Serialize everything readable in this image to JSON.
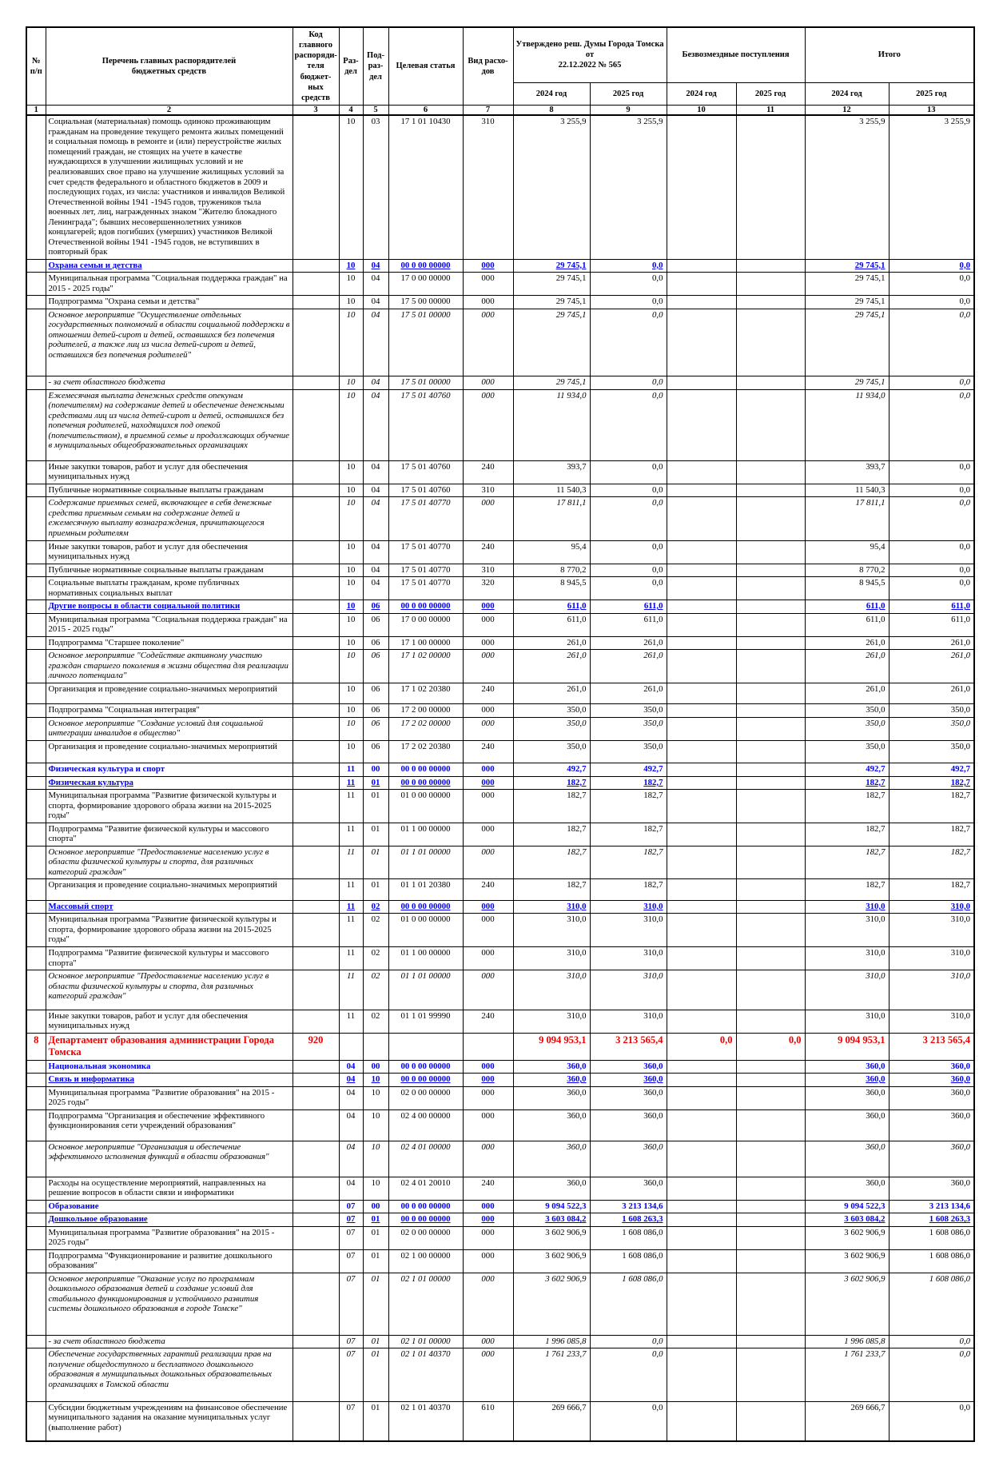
{
  "colors": {
    "section_blue": "#0000EE",
    "department_red": "#EE0000",
    "text_black": "#000000"
  },
  "header": {
    "columns": {
      "num": "№\nп/п",
      "list": "Перечень главных распорядителей\nбюджетных средств",
      "kod": "Код\nглавного\nраспоряди-\nтеля бюджет-\nных средств",
      "razdel": "Раз-\nдел",
      "podrazdel": "Под-\nраз-\nдел",
      "celevaya": "Целевая статья",
      "vid": "Вид расхо-\nдов"
    },
    "groups": {
      "approved": "Утверждено реш. Думы Города Томска от\n22.12.2022 № 565",
      "bezvozmezdnye": "Безвозмездные поступления",
      "itogo": "Итого"
    },
    "y2024": "2024 год",
    "y2025": "2025 год",
    "col_numbers": [
      "1",
      "2",
      "3",
      "4",
      "5",
      "6",
      "7",
      "8",
      "9",
      "10",
      "11",
      "12",
      "13"
    ]
  },
  "rows": [
    {
      "style": "plain",
      "num": "",
      "text": "Социальная (материальная) помощь одиноко проживающим гражданам на проведение текущего ремонта жилых помещений и социальная помощь в ремонте и (или) переустройстве жилых помещений граждан, не стоящих на учете в качестве нуждающихся в улучшении жилищных условий и не реализовавших свое право на улучшение жилищных условий за счет средств федерального и областного бюджетов в 2009 и последующих годах, из числа: участников и инвалидов Великой Отечественной войны 1941 -1945 годов, тружеников тыла военных лет, лиц, награжденных знаком \"Жителю блокадного Ленинграда\"; бывших несовершеннолетних узников концлагерей; вдов погибших (умерших) участников Великой Отечественной войны 1941 -1945 годов, не вступивших в повторный брак",
      "kod": "",
      "rz": "10",
      "pr": "03",
      "csr": "17 1 01 10430",
      "vr": "310",
      "a24": "3 255,9",
      "a25": "3 255,9",
      "g24": "",
      "g25": "",
      "t24": "3 255,9",
      "t25": "3 255,9"
    },
    {
      "style": "secu",
      "num": "",
      "text": "Охрана семьи и детства",
      "kod": "",
      "rz": "10",
      "pr": "04",
      "csr": "00 0 00 00000",
      "vr": "000",
      "a24": "29 745,1",
      "a25": "0,0",
      "g24": "",
      "g25": "",
      "t24": "29 745,1",
      "t25": "0,0"
    },
    {
      "style": "plain",
      "num": "",
      "text": "Муниципальная программа \"Социальная поддержка граждан\" на 2015 - 2025 годы\"",
      "kod": "",
      "rz": "10",
      "pr": "04",
      "csr": "17 0 00 00000",
      "vr": "000",
      "a24": "29 745,1",
      "a25": "0,0",
      "g24": "",
      "g25": "",
      "t24": "29 745,1",
      "t25": "0,0"
    },
    {
      "style": "plain",
      "num": "",
      "text": "Подпрограмма \"Охрана семьи и детства\"",
      "kod": "",
      "rz": "10",
      "pr": "04",
      "csr": "17 5 00 00000",
      "vr": "000",
      "a24": "29 745,1",
      "a25": "0,0",
      "g24": "",
      "g25": "",
      "t24": "29 745,1",
      "t25": "0,0"
    },
    {
      "style": "ital",
      "num": "",
      "text": "Основное мероприятие \"Осуществление отдельных государственных полномочий в области социальной поддержки в отношении детей-сирот и детей, оставшихся без попечения родителей, а также лиц из числа детей-сирот и детей, оставшихся без попечения родителей\"",
      "kod": "",
      "rz": "10",
      "pr": "04",
      "csr": "17 5 01 00000",
      "vr": "000",
      "a24": "29 745,1",
      "a25": "0,0",
      "g24": "",
      "g25": "",
      "t24": "29 745,1",
      "t25": "0,0",
      "pad": 20
    },
    {
      "style": "ital",
      "num": "",
      "text": "- за счет областного бюджета",
      "kod": "",
      "rz": "10",
      "pr": "04",
      "csr": "17 5 01 00000",
      "vr": "000",
      "a24": "29 745,1",
      "a25": "0,0",
      "g24": "",
      "g25": "",
      "t24": "29 745,1",
      "t25": "0,0"
    },
    {
      "style": "ital",
      "num": "",
      "text": "Ежемесячная выплата денежных средств опекунам (попечителям) на содержание детей и обеспечение денежными средствами лиц из числа детей-сирот и детей, оставшихся без попечения родителей, находящихся под опекой (попечительством), в приемной семье и продолжающих обучение в муниципальных общеобразовательных организациях",
      "kod": "",
      "rz": "10",
      "pr": "04",
      "csr": "17 5 01 40760",
      "vr": "000",
      "a24": "11 934,0",
      "a25": "0,0",
      "g24": "",
      "g25": "",
      "t24": "11 934,0",
      "t25": "0,0",
      "pad": 12
    },
    {
      "style": "plain",
      "num": "",
      "text": "Иные закупки товаров, работ и услуг для обеспечения муниципальных нужд",
      "kod": "",
      "rz": "10",
      "pr": "04",
      "csr": "17 5 01 40760",
      "vr": "240",
      "a24": "393,7",
      "a25": "0,0",
      "g24": "",
      "g25": "",
      "t24": "393,7",
      "t25": "0,0"
    },
    {
      "style": "plain",
      "num": "",
      "text": "Публичные нормативные социальные выплаты гражданам",
      "kod": "",
      "rz": "10",
      "pr": "04",
      "csr": "17 5 01 40760",
      "vr": "310",
      "a24": "11 540,3",
      "a25": "0,0",
      "g24": "",
      "g25": "",
      "t24": "11 540,3",
      "t25": "0,0"
    },
    {
      "style": "ital",
      "num": "",
      "text": "Содержание приемных семей, включающее в себя денежные средства приемным семьям на содержание детей и ежемесячную выплату вознаграждения, причитающегося приемным родителям",
      "kod": "",
      "rz": "10",
      "pr": "04",
      "csr": "17 5 01 40770",
      "vr": "000",
      "a24": "17 811,1",
      "a25": "0,0",
      "g24": "",
      "g25": "",
      "t24": "17 811,1",
      "t25": "0,0"
    },
    {
      "style": "plain",
      "num": "",
      "text": "Иные закупки товаров, работ и услуг для обеспечения муниципальных нужд",
      "kod": "",
      "rz": "10",
      "pr": "04",
      "csr": "17 5 01 40770",
      "vr": "240",
      "a24": "95,4",
      "a25": "0,0",
      "g24": "",
      "g25": "",
      "t24": "95,4",
      "t25": "0,0"
    },
    {
      "style": "plain",
      "num": "",
      "text": "Публичные нормативные социальные выплаты гражданам",
      "kod": "",
      "rz": "10",
      "pr": "04",
      "csr": "17 5 01 40770",
      "vr": "310",
      "a24": "8 770,2",
      "a25": "0,0",
      "g24": "",
      "g25": "",
      "t24": "8 770,2",
      "t25": "0,0"
    },
    {
      "style": "plain",
      "num": "",
      "text": "Социальные выплаты гражданам, кроме публичных нормативных социальных выплат",
      "kod": "",
      "rz": "10",
      "pr": "04",
      "csr": "17 5 01 40770",
      "vr": "320",
      "a24": "8 945,5",
      "a25": "0,0",
      "g24": "",
      "g25": "",
      "t24": "8 945,5",
      "t25": "0,0"
    },
    {
      "style": "secu",
      "num": "",
      "text": "Другие вопросы в области социальной политики",
      "kod": "",
      "rz": "10",
      "pr": "06",
      "csr": "00 0 00 00000",
      "vr": "000",
      "a24": "611,0",
      "a25": "611,0",
      "g24": "",
      "g25": "",
      "t24": "611,0",
      "t25": "611,0"
    },
    {
      "style": "plain",
      "num": "",
      "text": "Муниципальная программа \"Социальная поддержка граждан\" на 2015 - 2025 годы\"",
      "kod": "",
      "rz": "10",
      "pr": "06",
      "csr": "17 0 00 00000",
      "vr": "000",
      "a24": "611,0",
      "a25": "611,0",
      "g24": "",
      "g25": "",
      "t24": "611,0",
      "t25": "611,0"
    },
    {
      "style": "plain",
      "num": "",
      "text": "Подпрограмма \"Старшее поколение\"",
      "kod": "",
      "rz": "10",
      "pr": "06",
      "csr": "17 1 00 00000",
      "vr": "000",
      "a24": "261,0",
      "a25": "261,0",
      "g24": "",
      "g25": "",
      "t24": "261,0",
      "t25": "261,0"
    },
    {
      "style": "ital",
      "num": "",
      "text": "Основное мероприятие \"Содействие активному участию граждан старшего поколения в жизни общества для реализации личного потенциала\"",
      "kod": "",
      "rz": "10",
      "pr": "06",
      "csr": "17 1 02 00000",
      "vr": "000",
      "a24": "261,0",
      "a25": "261,0",
      "g24": "",
      "g25": "",
      "t24": "261,0",
      "t25": "261,0"
    },
    {
      "style": "plain",
      "num": "",
      "text": "Организация и проведение социально-значимых мероприятий",
      "kod": "",
      "rz": "10",
      "pr": "06",
      "csr": "17 1 02 20380",
      "vr": "240",
      "a24": "261,0",
      "a25": "261,0",
      "g24": "",
      "g25": "",
      "t24": "261,0",
      "t25": "261,0",
      "pad": 12
    },
    {
      "style": "plain",
      "num": "",
      "text": "Подпрограмма \"Социальная интеграция\"",
      "kod": "",
      "rz": "10",
      "pr": "06",
      "csr": "17 2 00 00000",
      "vr": "000",
      "a24": "350,0",
      "a25": "350,0",
      "g24": "",
      "g25": "",
      "t24": "350,0",
      "t25": "350,0"
    },
    {
      "style": "ital",
      "num": "",
      "text": "Основное мероприятие \"Создание условий для социальной интеграции инвалидов в общество\"",
      "kod": "",
      "rz": "10",
      "pr": "06",
      "csr": "17 2 02 00000",
      "vr": "000",
      "a24": "350,0",
      "a25": "350,0",
      "g24": "",
      "g25": "",
      "t24": "350,0",
      "t25": "350,0"
    },
    {
      "style": "plain",
      "num": "",
      "text": "Организация и проведение социально-значимых мероприятий",
      "kod": "",
      "rz": "10",
      "pr": "06",
      "csr": "17 2 02 20380",
      "vr": "240",
      "a24": "350,0",
      "a25": "350,0",
      "g24": "",
      "g25": "",
      "t24": "350,0",
      "t25": "350,0",
      "pad": 14
    },
    {
      "style": "sec",
      "num": "",
      "text": "Физическая культура и спорт",
      "kod": "",
      "rz": "11",
      "pr": "00",
      "csr": "00 0 00 00000",
      "vr": "000",
      "a24": "492,7",
      "a25": "492,7",
      "g24": "",
      "g25": "",
      "t24": "492,7",
      "t25": "492,7"
    },
    {
      "style": "secu",
      "num": "",
      "text": "Физическая культура",
      "kod": "",
      "rz": "11",
      "pr": "01",
      "csr": "00 0 00 00000",
      "vr": "000",
      "a24": "182,7",
      "a25": "182,7",
      "g24": "",
      "g25": "",
      "t24": "182,7",
      "t25": "182,7"
    },
    {
      "style": "plain",
      "num": "",
      "text": "Муниципальная программа \"Развитие физической культуры и спорта, формирование здорового образа жизни на 2015-2025 годы\"",
      "kod": "",
      "rz": "11",
      "pr": "01",
      "csr": "01 0 00 00000",
      "vr": "000",
      "a24": "182,7",
      "a25": "182,7",
      "g24": "",
      "g25": "",
      "t24": "182,7",
      "t25": "182,7"
    },
    {
      "style": "plain",
      "num": "",
      "text": "Подпрограмма \"Развитие физической культуры и массового спорта\"",
      "kod": "",
      "rz": "11",
      "pr": "01",
      "csr": "01 1 00 00000",
      "vr": "000",
      "a24": "182,7",
      "a25": "182,7",
      "g24": "",
      "g25": "",
      "t24": "182,7",
      "t25": "182,7"
    },
    {
      "style": "ital",
      "num": "",
      "text": "Основное мероприятие \"Предоставление населению услуг в области физической культуры и спорта, для различных категорий граждан\"",
      "kod": "",
      "rz": "11",
      "pr": "01",
      "csr": "01 1 01 00000",
      "vr": "000",
      "a24": "182,7",
      "a25": "182,7",
      "g24": "",
      "g25": "",
      "t24": "182,7",
      "t25": "182,7"
    },
    {
      "style": "plain",
      "num": "",
      "text": "Организация и проведение социально-значимых мероприятий",
      "kod": "",
      "rz": "11",
      "pr": "01",
      "csr": "01 1 01 20380",
      "vr": "240",
      "a24": "182,7",
      "a25": "182,7",
      "g24": "",
      "g25": "",
      "t24": "182,7",
      "t25": "182,7",
      "pad": 12
    },
    {
      "style": "secu",
      "num": "",
      "text": "Массовый спорт",
      "kod": "",
      "rz": "11",
      "pr": "02",
      "csr": "00 0 00 00000",
      "vr": "000",
      "a24": "310,0",
      "a25": "310,0",
      "g24": "",
      "g25": "",
      "t24": "310,0",
      "t25": "310,0"
    },
    {
      "style": "plain",
      "num": "",
      "text": "Муниципальная программа \"Развитие физической культуры и спорта, формирование здорового образа жизни на 2015-2025 годы\"",
      "kod": "",
      "rz": "11",
      "pr": "02",
      "csr": "01 0 00 00000",
      "vr": "000",
      "a24": "310,0",
      "a25": "310,0",
      "g24": "",
      "g25": "",
      "t24": "310,0",
      "t25": "310,0"
    },
    {
      "style": "plain",
      "num": "",
      "text": "Подпрограмма \"Развитие физической культуры и массового спорта\"",
      "kod": "",
      "rz": "11",
      "pr": "02",
      "csr": "01 1 00 00000",
      "vr": "000",
      "a24": "310,0",
      "a25": "310,0",
      "g24": "",
      "g25": "",
      "t24": "310,0",
      "t25": "310,0"
    },
    {
      "style": "ital",
      "num": "",
      "text": "Основное мероприятие \"Предоставление населению услуг в области физической культуры и спорта, для различных категорий граждан\"",
      "kod": "",
      "rz": "11",
      "pr": "02",
      "csr": "01 1 01 00000",
      "vr": "000",
      "a24": "310,0",
      "a25": "310,0",
      "g24": "",
      "g25": "",
      "t24": "310,0",
      "t25": "310,0",
      "pad": 10
    },
    {
      "style": "plain",
      "num": "",
      "text": "Иные закупки товаров, работ и услуг для обеспечения муниципальных нужд",
      "kod": "",
      "rz": "11",
      "pr": "02",
      "csr": "01 1 01 99990",
      "vr": "240",
      "a24": "310,0",
      "a25": "310,0",
      "g24": "",
      "g25": "",
      "t24": "310,0",
      "t25": "310,0"
    },
    {
      "style": "dept",
      "num": "8",
      "text": "Департамент образования администрации Города Томска",
      "kod": "920",
      "rz": "",
      "pr": "",
      "csr": "",
      "vr": "",
      "a24": "9 094 953,1",
      "a25": "3 213 565,4",
      "g24": "0,0",
      "g25": "0,0",
      "t24": "9 094 953,1",
      "t25": "3 213 565,4"
    },
    {
      "style": "sec",
      "num": "",
      "text": "Национальная экономика",
      "kod": "",
      "rz": "04",
      "pr": "00",
      "csr": "00 0 00 00000",
      "vr": "000",
      "a24": "360,0",
      "a25": "360,0",
      "g24": "",
      "g25": "",
      "t24": "360,0",
      "t25": "360,0"
    },
    {
      "style": "secu",
      "num": "",
      "text": "Связь и информатика",
      "kod": "",
      "rz": "04",
      "pr": "10",
      "csr": "00 0 00 00000",
      "vr": "000",
      "a24": "360,0",
      "a25": "360,0",
      "g24": "",
      "g25": "",
      "t24": "360,0",
      "t25": "360,0"
    },
    {
      "style": "plain",
      "num": "",
      "text": "Муниципальная программа \"Развитие образования\" на 2015 - 2025 годы\"",
      "kod": "",
      "rz": "04",
      "pr": "10",
      "csr": "02 0 00 00000",
      "vr": "000",
      "a24": "360,0",
      "a25": "360,0",
      "g24": "",
      "g25": "",
      "t24": "360,0",
      "t25": "360,0"
    },
    {
      "style": "plain",
      "num": "",
      "text": "Подпрограмма \"Организация и обеспечение эффективного функционирования сети учреждений образования\"",
      "kod": "",
      "rz": "04",
      "pr": "10",
      "csr": "02 4 00 00000",
      "vr": "000",
      "a24": "360,0",
      "a25": "360,0",
      "g24": "",
      "g25": "",
      "t24": "360,0",
      "t25": "360,0",
      "pad": 12
    },
    {
      "style": "ital",
      "num": "",
      "text": "Основное мероприятие \"Организация и обеспечение эффективного исполнения функций в области образования\"",
      "kod": "",
      "rz": "04",
      "pr": "10",
      "csr": "02 4 01 00000",
      "vr": "000",
      "a24": "360,0",
      "a25": "360,0",
      "g24": "",
      "g25": "",
      "t24": "360,0",
      "t25": "360,0",
      "pad": 18
    },
    {
      "style": "plain",
      "num": "",
      "text": "Расходы на осуществление мероприятий, направленных на решение вопросов в области связи и информатики",
      "kod": "",
      "rz": "04",
      "pr": "10",
      "csr": "02 4 01 20010",
      "vr": "240",
      "a24": "360,0",
      "a25": "360,0",
      "g24": "",
      "g25": "",
      "t24": "360,0",
      "t25": "360,0"
    },
    {
      "style": "sec",
      "num": "",
      "text": "Образование",
      "kod": "",
      "rz": "07",
      "pr": "00",
      "csr": "00 0 00 00000",
      "vr": "000",
      "a24": "9 094 522,3",
      "a25": "3 213 134,6",
      "g24": "",
      "g25": "",
      "t24": "9 094 522,3",
      "t25": "3 213 134,6"
    },
    {
      "style": "secu",
      "num": "",
      "text": "Дошкольное образование",
      "kod": "",
      "rz": "07",
      "pr": "01",
      "csr": "00 0 00 00000",
      "vr": "000",
      "a24": "3 603 084,2",
      "a25": "1 608 263,3",
      "g24": "",
      "g25": "",
      "t24": "3 603 084,2",
      "t25": "1 608 263,3"
    },
    {
      "style": "plain",
      "num": "",
      "text": "Муниципальная программа \"Развитие образования\" на 2015 - 2025 годы\"",
      "kod": "",
      "rz": "07",
      "pr": "01",
      "csr": "02 0 00 00000",
      "vr": "000",
      "a24": "3 602 906,9",
      "a25": "1 608 086,0",
      "g24": "",
      "g25": "",
      "t24": "3 602 906,9",
      "t25": "1 608 086,0"
    },
    {
      "style": "plain",
      "num": "",
      "text": "Подпрограмма \"Функционирование и развитие дошкольного образования\"",
      "kod": "",
      "rz": "07",
      "pr": "01",
      "csr": "02 1 00 00000",
      "vr": "000",
      "a24": "3 602 906,9",
      "a25": "1 608 086,0",
      "g24": "",
      "g25": "",
      "t24": "3 602 906,9",
      "t25": "1 608 086,0"
    },
    {
      "style": "ital",
      "num": "",
      "text": "Основное мероприятие \"Оказание услуг по программам дошкольного образования детей и создание условий для стабильного функционирования и устойчивого развития системы дошкольного образования в городе Томске\"",
      "kod": "",
      "rz": "07",
      "pr": "01",
      "csr": "02 1 01 00000",
      "vr": "000",
      "a24": "3 602 906,9",
      "a25": "1 608 086,0",
      "g24": "",
      "g25": "",
      "t24": "3 602 906,9",
      "t25": "1 608 086,0",
      "pad": 26
    },
    {
      "style": "ital",
      "num": "",
      "text": "- за счет областного бюджета",
      "kod": "",
      "rz": "07",
      "pr": "01",
      "csr": "02 1 01 00000",
      "vr": "000",
      "a24": "1 996 085,8",
      "a25": "0,0",
      "g24": "",
      "g25": "",
      "t24": "1 996 085,8",
      "t25": "0,0"
    },
    {
      "style": "ital",
      "num": "",
      "text": "Обеспечение государственных гарантий реализации прав на получение общедоступного и бесплатного дошкольного образования в муниципальных дошкольных образовательных организациях в Томской области",
      "kod": "",
      "rz": "07",
      "pr": "01",
      "csr": "02 1 01 40370",
      "vr": "000",
      "a24": "1 761 233,7",
      "a25": "0,0",
      "g24": "",
      "g25": "",
      "t24": "1 761 233,7",
      "t25": "0,0",
      "pad": 14
    },
    {
      "style": "plain",
      "num": "",
      "text": "Субсидии бюджетным учреждениям на финансовое обеспечение муниципального задания на оказание муниципальных услуг (выполнение работ)",
      "kod": "",
      "rz": "07",
      "pr": "01",
      "csr": "02 1 01 40370",
      "vr": "610",
      "a24": "269 666,7",
      "a25": "0,0",
      "g24": "",
      "g25": "",
      "t24": "269 666,7",
      "t25": "0,0",
      "pad": 10
    }
  ]
}
